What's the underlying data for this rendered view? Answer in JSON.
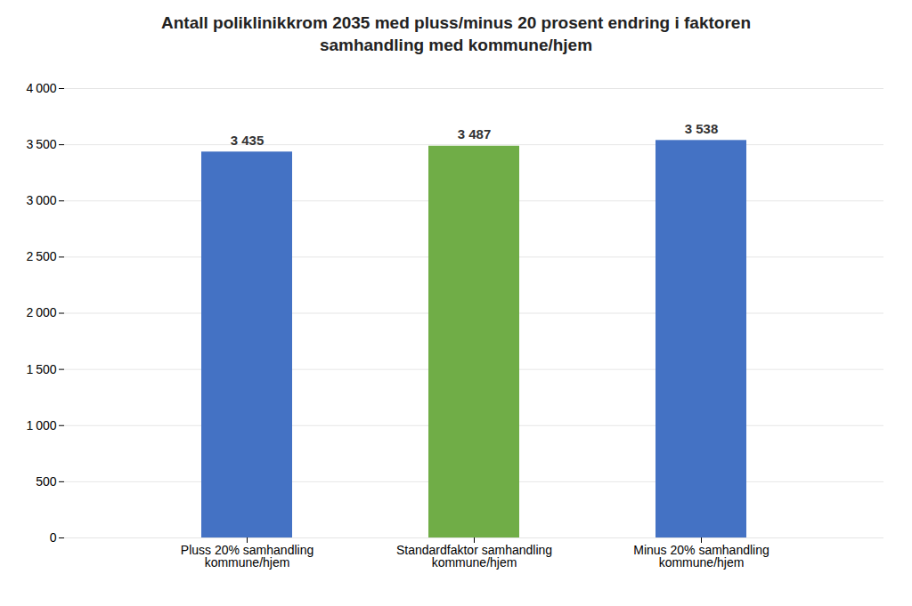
{
  "chart_data": {
    "type": "bar",
    "title": "Antall poliklinikkrom 2035 med pluss/minus 20 prosent endring i faktoren\nsamhandling med kommune/hjem",
    "categories": [
      "Pluss 20% samhandling\nkommune/hjem",
      "Standardfaktor samhandling\nkommune/hjem",
      "Minus 20% samhandling\nkommune/hjem"
    ],
    "values": [
      3435,
      3487,
      3538
    ],
    "value_labels": [
      "3 435",
      "3 487",
      "3 538"
    ],
    "colors": [
      "#4472C4",
      "#70AD47",
      "#4472C4"
    ],
    "data_labels": true,
    "ylim": [
      0,
      4000
    ],
    "yticks": [
      0,
      500,
      {
        "value": 1000,
        "label": "1 000"
      },
      {
        "value": 1500,
        "label": "1 500"
      },
      {
        "value": 2000,
        "label": "2 000"
      },
      {
        "value": 2500,
        "label": "2 500"
      },
      {
        "value": 3000,
        "label": "3 000"
      },
      {
        "value": 3500,
        "label": "3 500"
      },
      {
        "value": 4000,
        "label": "4 000"
      }
    ],
    "grid": true
  }
}
